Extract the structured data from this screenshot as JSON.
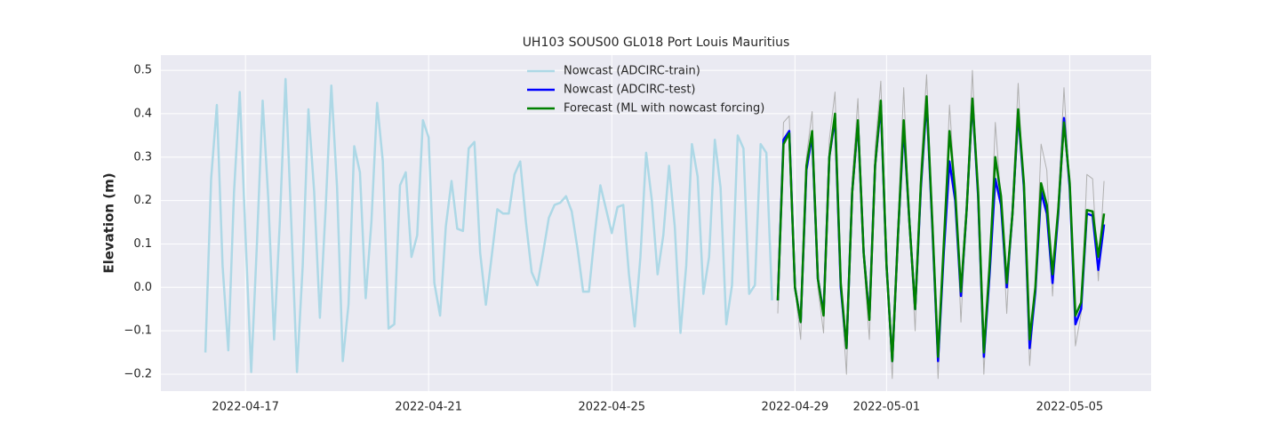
{
  "chart_data": {
    "type": "line",
    "title": "UH103 SOUS00 GL018 Port Louis Mauritius",
    "y_label": "Elevation (m)",
    "xlim": [
      "2022-04-15T03:40",
      "2022-05-06T18:40"
    ],
    "xticks": [
      "2022-04-17",
      "2022-04-21",
      "2022-04-25",
      "2022-04-29",
      "2022-05-01",
      "2022-05-05"
    ],
    "ylim": [
      -0.239,
      0.535
    ],
    "yticks": [
      {
        "value": -0.2,
        "label": "−0.2"
      },
      {
        "value": -0.1,
        "label": "−0.1"
      },
      {
        "value": 0,
        "label": "0.0"
      },
      0.1,
      0.2,
      0.3,
      0.4,
      0.5
    ],
    "grid": true,
    "legend": "upper center",
    "series": [
      {
        "color": "#b0b0b0",
        "x": [
          "2022-04-28T15:00",
          "2022-04-28T18:00",
          "2022-04-28T21:00",
          "2022-04-29T00:00",
          "2022-04-29T03:00",
          "2022-04-29T06:00",
          "2022-04-29T09:00",
          "2022-04-29T12:00",
          "2022-04-29T15:00",
          "2022-04-29T18:00",
          "2022-04-29T21:00",
          "2022-04-30T00:00",
          "2022-04-30T03:00",
          "2022-04-30T06:00",
          "2022-04-30T09:00",
          "2022-04-30T12:00",
          "2022-04-30T15:00",
          "2022-04-30T18:00",
          "2022-04-30T21:00",
          "2022-05-01T00:00",
          "2022-05-01T03:00",
          "2022-05-01T06:00",
          "2022-05-01T09:00",
          "2022-05-01T12:00",
          "2022-05-01T15:00",
          "2022-05-01T18:00",
          "2022-05-01T21:00",
          "2022-05-02T00:00",
          "2022-05-02T03:00",
          "2022-05-02T06:00",
          "2022-05-02T09:00",
          "2022-05-02T12:00",
          "2022-05-02T15:00",
          "2022-05-02T18:00",
          "2022-05-02T21:00",
          "2022-05-03T00:00",
          "2022-05-03T03:00",
          "2022-05-03T06:00",
          "2022-05-03T09:00",
          "2022-05-03T12:00",
          "2022-05-03T15:00",
          "2022-05-03T18:00",
          "2022-05-03T21:00",
          "2022-05-04T00:00",
          "2022-05-04T03:00",
          "2022-05-04T06:00",
          "2022-05-04T09:00",
          "2022-05-04T12:00",
          "2022-05-04T15:00",
          "2022-05-04T18:00",
          "2022-05-04T21:00",
          "2022-05-05T00:00",
          "2022-05-05T03:00",
          "2022-05-05T06:00",
          "2022-05-05T09:00",
          "2022-05-05T12:00",
          "2022-05-05T15:00",
          "2022-05-05T18:00"
        ],
        "values": [
          -0.06,
          0.38,
          0.395,
          0.0,
          -0.12,
          0.3,
          0.405,
          0.0,
          -0.105,
          0.34,
          0.45,
          0.0,
          -0.2,
          0.25,
          0.435,
          0.06,
          -0.12,
          0.32,
          0.475,
          0.05,
          -0.21,
          0.15,
          0.46,
          0.14,
          -0.1,
          0.28,
          0.49,
          0.15,
          -0.21,
          0.1,
          0.42,
          0.22,
          -0.08,
          0.2,
          0.5,
          0.2,
          -0.2,
          0.05,
          0.38,
          0.2,
          -0.06,
          0.2,
          0.47,
          0.2,
          -0.18,
          0.0,
          0.33,
          0.27,
          -0.02,
          0.2,
          0.46,
          0.22,
          -0.135,
          -0.06,
          0.26,
          0.25,
          0.015,
          0.245
        ]
      },
      {
        "name": "Nowcast (ADCIRC-train)",
        "color": "#add8e6",
        "x": [
          "2022-04-16T03:00",
          "2022-04-16T06:00",
          "2022-04-16T09:00",
          "2022-04-16T12:00",
          "2022-04-16T15:00",
          "2022-04-16T18:00",
          "2022-04-16T21:00",
          "2022-04-17T00:00",
          "2022-04-17T03:00",
          "2022-04-17T06:00",
          "2022-04-17T09:00",
          "2022-04-17T12:00",
          "2022-04-17T15:00",
          "2022-04-17T18:00",
          "2022-04-17T21:00",
          "2022-04-18T00:00",
          "2022-04-18T03:00",
          "2022-04-18T06:00",
          "2022-04-18T09:00",
          "2022-04-18T12:00",
          "2022-04-18T15:00",
          "2022-04-18T18:00",
          "2022-04-18T21:00",
          "2022-04-19T00:00",
          "2022-04-19T03:00",
          "2022-04-19T06:00",
          "2022-04-19T09:00",
          "2022-04-19T12:00",
          "2022-04-19T15:00",
          "2022-04-19T18:00",
          "2022-04-19T21:00",
          "2022-04-20T00:00",
          "2022-04-20T03:00",
          "2022-04-20T06:00",
          "2022-04-20T09:00",
          "2022-04-20T12:00",
          "2022-04-20T15:00",
          "2022-04-20T18:00",
          "2022-04-20T21:00",
          "2022-04-21T00:00",
          "2022-04-21T03:00",
          "2022-04-21T06:00",
          "2022-04-21T09:00",
          "2022-04-21T12:00",
          "2022-04-21T15:00",
          "2022-04-21T18:00",
          "2022-04-21T21:00",
          "2022-04-22T00:00",
          "2022-04-22T03:00",
          "2022-04-22T06:00",
          "2022-04-22T09:00",
          "2022-04-22T12:00",
          "2022-04-22T15:00",
          "2022-04-22T18:00",
          "2022-04-22T21:00",
          "2022-04-23T00:00",
          "2022-04-23T03:00",
          "2022-04-23T06:00",
          "2022-04-23T09:00",
          "2022-04-23T12:00",
          "2022-04-23T15:00",
          "2022-04-23T18:00",
          "2022-04-23T21:00",
          "2022-04-24T00:00",
          "2022-04-24T03:00",
          "2022-04-24T06:00",
          "2022-04-24T09:00",
          "2022-04-24T12:00",
          "2022-04-24T15:00",
          "2022-04-24T18:00",
          "2022-04-24T21:00",
          "2022-04-25T00:00",
          "2022-04-25T03:00",
          "2022-04-25T06:00",
          "2022-04-25T09:00",
          "2022-04-25T12:00",
          "2022-04-25T15:00",
          "2022-04-25T18:00",
          "2022-04-25T21:00",
          "2022-04-26T00:00",
          "2022-04-26T03:00",
          "2022-04-26T06:00",
          "2022-04-26T09:00",
          "2022-04-26T12:00",
          "2022-04-26T15:00",
          "2022-04-26T18:00",
          "2022-04-26T21:00",
          "2022-04-27T00:00",
          "2022-04-27T03:00",
          "2022-04-27T06:00",
          "2022-04-27T09:00",
          "2022-04-27T12:00",
          "2022-04-27T15:00",
          "2022-04-27T18:00",
          "2022-04-27T21:00",
          "2022-04-28T00:00",
          "2022-04-28T03:00",
          "2022-04-28T06:00",
          "2022-04-28T09:00",
          "2022-04-28T12:00"
        ],
        "values": [
          -0.15,
          0.25,
          0.42,
          0.05,
          -0.145,
          0.22,
          0.45,
          0.12,
          -0.195,
          0.1,
          0.43,
          0.2,
          -0.12,
          0.15,
          0.48,
          0.15,
          -0.195,
          0.05,
          0.41,
          0.22,
          -0.07,
          0.18,
          0.465,
          0.23,
          -0.17,
          -0.04,
          0.325,
          0.265,
          -0.025,
          0.15,
          0.425,
          0.29,
          -0.095,
          -0.085,
          0.235,
          0.265,
          0.07,
          0.12,
          0.385,
          0.345,
          0.01,
          -0.065,
          0.14,
          0.245,
          0.135,
          0.13,
          0.32,
          0.335,
          0.08,
          -0.04,
          0.07,
          0.18,
          0.17,
          0.17,
          0.26,
          0.29,
          0.15,
          0.035,
          0.005,
          0.08,
          0.16,
          0.19,
          0.195,
          0.21,
          0.175,
          0.09,
          -0.01,
          -0.01,
          0.12,
          0.235,
          0.18,
          0.125,
          0.185,
          0.19,
          0.03,
          -0.09,
          0.07,
          0.31,
          0.2,
          0.03,
          0.12,
          0.28,
          0.14,
          -0.105,
          0.05,
          0.33,
          0.255,
          -0.015,
          0.07,
          0.34,
          0.23,
          -0.085,
          0.005,
          0.35,
          0.32,
          -0.015,
          0.005,
          0.33,
          0.31,
          -0.03
        ]
      },
      {
        "name": "Nowcast (ADCIRC-test)",
        "color": "#0000ff",
        "x": [
          "2022-04-28T15:00",
          "2022-04-28T18:00",
          "2022-04-28T21:00",
          "2022-04-29T00:00",
          "2022-04-29T03:00",
          "2022-04-29T06:00",
          "2022-04-29T09:00",
          "2022-04-29T12:00",
          "2022-04-29T15:00",
          "2022-04-29T18:00",
          "2022-04-29T21:00",
          "2022-04-30T00:00",
          "2022-04-30T03:00",
          "2022-04-30T06:00",
          "2022-04-30T09:00",
          "2022-04-30T12:00",
          "2022-04-30T15:00",
          "2022-04-30T18:00",
          "2022-04-30T21:00",
          "2022-05-01T00:00",
          "2022-05-01T03:00",
          "2022-05-01T06:00",
          "2022-05-01T09:00",
          "2022-05-01T12:00",
          "2022-05-01T15:00",
          "2022-05-01T18:00",
          "2022-05-01T21:00",
          "2022-05-02T00:00",
          "2022-05-02T03:00",
          "2022-05-02T06:00",
          "2022-05-02T09:00",
          "2022-05-02T12:00",
          "2022-05-02T15:00",
          "2022-05-02T18:00",
          "2022-05-02T21:00",
          "2022-05-03T00:00",
          "2022-05-03T03:00",
          "2022-05-03T06:00",
          "2022-05-03T09:00",
          "2022-05-03T12:00",
          "2022-05-03T15:00",
          "2022-05-03T18:00",
          "2022-05-03T21:00",
          "2022-05-04T00:00",
          "2022-05-04T03:00",
          "2022-05-04T06:00",
          "2022-05-04T09:00",
          "2022-05-04T12:00",
          "2022-05-04T15:00",
          "2022-05-04T18:00",
          "2022-05-04T21:00",
          "2022-05-05T00:00",
          "2022-05-05T03:00",
          "2022-05-05T06:00",
          "2022-05-05T09:00",
          "2022-05-05T12:00",
          "2022-05-05T15:00",
          "2022-05-05T18:00"
        ],
        "values": [
          -0.03,
          0.34,
          0.36,
          0.0,
          -0.08,
          0.27,
          0.35,
          0.02,
          -0.06,
          0.3,
          0.39,
          0.0,
          -0.14,
          0.22,
          0.38,
          0.08,
          -0.07,
          0.28,
          0.42,
          0.05,
          -0.17,
          0.12,
          0.37,
          0.15,
          -0.05,
          0.23,
          0.43,
          0.14,
          -0.17,
          0.08,
          0.29,
          0.2,
          -0.02,
          0.18,
          0.43,
          0.21,
          -0.16,
          0.03,
          0.25,
          0.19,
          0.0,
          0.17,
          0.4,
          0.23,
          -0.14,
          -0.01,
          0.22,
          0.17,
          0.01,
          0.17,
          0.39,
          0.23,
          -0.085,
          -0.05,
          0.17,
          0.165,
          0.04,
          0.145
        ]
      },
      {
        "name": "Forecast (ML with nowcast forcing)",
        "color": "#008000",
        "x": [
          "2022-04-28T15:00",
          "2022-04-28T18:00",
          "2022-04-28T21:00",
          "2022-04-29T00:00",
          "2022-04-29T03:00",
          "2022-04-29T06:00",
          "2022-04-29T09:00",
          "2022-04-29T12:00",
          "2022-04-29T15:00",
          "2022-04-29T18:00",
          "2022-04-29T21:00",
          "2022-04-30T00:00",
          "2022-04-30T03:00",
          "2022-04-30T06:00",
          "2022-04-30T09:00",
          "2022-04-30T12:00",
          "2022-04-30T15:00",
          "2022-04-30T18:00",
          "2022-04-30T21:00",
          "2022-05-01T00:00",
          "2022-05-01T03:00",
          "2022-05-01T06:00",
          "2022-05-01T09:00",
          "2022-05-01T12:00",
          "2022-05-01T15:00",
          "2022-05-01T18:00",
          "2022-05-01T21:00",
          "2022-05-02T00:00",
          "2022-05-02T03:00",
          "2022-05-02T06:00",
          "2022-05-02T09:00",
          "2022-05-02T12:00",
          "2022-05-02T15:00",
          "2022-05-02T18:00",
          "2022-05-02T21:00",
          "2022-05-03T00:00",
          "2022-05-03T03:00",
          "2022-05-03T06:00",
          "2022-05-03T09:00",
          "2022-05-03T12:00",
          "2022-05-03T15:00",
          "2022-05-03T18:00",
          "2022-05-03T21:00",
          "2022-05-04T00:00",
          "2022-05-04T03:00",
          "2022-05-04T06:00",
          "2022-05-04T09:00",
          "2022-05-04T12:00",
          "2022-05-04T15:00",
          "2022-05-04T18:00",
          "2022-05-04T21:00",
          "2022-05-05T00:00",
          "2022-05-05T03:00",
          "2022-05-05T06:00",
          "2022-05-05T09:00",
          "2022-05-05T12:00",
          "2022-05-05T15:00",
          "2022-05-05T18:00"
        ],
        "values": [
          -0.03,
          0.33,
          0.355,
          0.0,
          -0.08,
          0.28,
          0.36,
          0.02,
          -0.065,
          0.3,
          0.4,
          0.01,
          -0.14,
          0.22,
          0.385,
          0.08,
          -0.075,
          0.28,
          0.43,
          0.05,
          -0.17,
          0.12,
          0.385,
          0.15,
          -0.05,
          0.24,
          0.44,
          0.15,
          -0.16,
          0.1,
          0.36,
          0.22,
          -0.01,
          0.18,
          0.435,
          0.22,
          -0.15,
          0.05,
          0.3,
          0.21,
          0.01,
          0.17,
          0.41,
          0.24,
          -0.12,
          0.0,
          0.24,
          0.19,
          0.03,
          0.18,
          0.38,
          0.24,
          -0.065,
          -0.035,
          0.178,
          0.175,
          0.07,
          0.17
        ]
      }
    ]
  }
}
